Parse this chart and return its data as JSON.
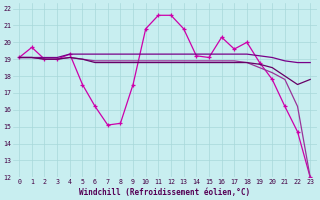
{
  "xlabel": "Windchill (Refroidissement éolien,°C)",
  "xlim": [
    -0.5,
    23.5
  ],
  "ylim": [
    12,
    22.3
  ],
  "yticks": [
    12,
    13,
    14,
    15,
    16,
    17,
    18,
    19,
    20,
    21,
    22
  ],
  "xticks": [
    0,
    1,
    2,
    3,
    4,
    5,
    6,
    7,
    8,
    9,
    10,
    11,
    12,
    13,
    14,
    15,
    16,
    17,
    18,
    19,
    20,
    21,
    22,
    23
  ],
  "bg_color": "#c8eef0",
  "grid_color": "#a8d8da",
  "series": [
    {
      "x": [
        0,
        1,
        2,
        3,
        4,
        5,
        6,
        7,
        8,
        9,
        10,
        11,
        12,
        13,
        14,
        15,
        16,
        17,
        18,
        19,
        20,
        21,
        22,
        23
      ],
      "y": [
        19.1,
        19.7,
        19.0,
        19.0,
        19.3,
        17.5,
        16.2,
        15.1,
        15.2,
        17.5,
        20.8,
        21.6,
        21.6,
        20.8,
        19.2,
        19.1,
        20.3,
        19.6,
        20.0,
        18.8,
        17.8,
        16.2,
        14.7,
        12.0
      ],
      "color": "#cc00aa",
      "lw": 0.9,
      "marker": "+"
    },
    {
      "x": [
        0,
        1,
        2,
        3,
        4,
        5,
        6,
        7,
        8,
        9,
        10,
        11,
        12,
        13,
        14,
        15,
        16,
        17,
        18,
        19,
        20,
        21,
        22,
        23
      ],
      "y": [
        19.1,
        19.1,
        19.1,
        19.1,
        19.3,
        19.3,
        19.3,
        19.3,
        19.3,
        19.3,
        19.3,
        19.3,
        19.3,
        19.3,
        19.3,
        19.3,
        19.3,
        19.3,
        19.3,
        19.2,
        19.1,
        18.9,
        18.8,
        18.8
      ],
      "color": "#770088",
      "lw": 0.9,
      "marker": null
    },
    {
      "x": [
        0,
        1,
        2,
        3,
        4,
        5,
        6,
        7,
        8,
        9,
        10,
        11,
        12,
        13,
        14,
        15,
        16,
        17,
        18,
        19,
        20,
        21,
        22,
        23
      ],
      "y": [
        19.1,
        19.1,
        19.0,
        19.0,
        19.1,
        19.0,
        18.9,
        18.9,
        18.9,
        18.9,
        18.9,
        18.9,
        18.9,
        18.9,
        18.9,
        18.9,
        18.9,
        18.9,
        18.8,
        18.5,
        18.2,
        17.8,
        16.2,
        12.0
      ],
      "color": "#993399",
      "lw": 0.9,
      "marker": null
    },
    {
      "x": [
        0,
        1,
        2,
        3,
        4,
        5,
        6,
        7,
        8,
        9,
        10,
        11,
        12,
        13,
        14,
        15,
        16,
        17,
        18,
        19,
        20,
        21,
        22,
        23
      ],
      "y": [
        19.1,
        19.1,
        19.0,
        19.0,
        19.1,
        19.0,
        18.8,
        18.8,
        18.8,
        18.8,
        18.8,
        18.8,
        18.8,
        18.8,
        18.8,
        18.8,
        18.8,
        18.8,
        18.8,
        18.7,
        18.5,
        18.0,
        17.5,
        17.8
      ],
      "color": "#660066",
      "lw": 0.9,
      "marker": null
    }
  ]
}
